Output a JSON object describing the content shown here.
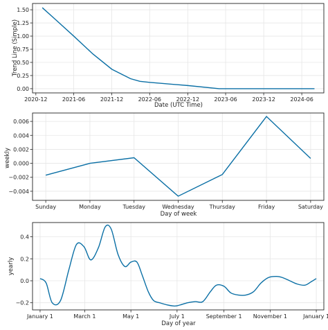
{
  "chart_data": [
    {
      "type": "line",
      "xlabel": "Date (UTC Time)",
      "ylabel": "Trend Line (Simple)",
      "x_axis_type": "date",
      "xlim": [
        "2020-11-15",
        "2024-09-15"
      ],
      "ylim": [
        -0.08,
        1.62
      ],
      "grid": true,
      "x_tick_values": [
        "2020-12-01",
        "2021-06-01",
        "2021-12-01",
        "2022-06-01",
        "2022-12-01",
        "2023-06-01",
        "2023-12-01",
        "2024-06-01"
      ],
      "x_tick_labels": [
        "2020-12",
        "2021-06",
        "2021-12",
        "2022-06",
        "2022-12",
        "2023-06",
        "2023-12",
        "2024-06"
      ],
      "y_tick_values": [
        0,
        0.25,
        0.5,
        0.75,
        1.0,
        1.25,
        1.5
      ],
      "y_tick_labels": [
        "0.00",
        "0.25",
        "0.50",
        "0.75",
        "1.00",
        "1.25",
        "1.50"
      ],
      "series": [
        {
          "color": "#0a6fa5",
          "x": [
            "2021-01-01",
            "2021-03-01",
            "2021-06-01",
            "2021-09-01",
            "2021-12-01",
            "2022-03-01",
            "2022-04-15",
            "2022-06-01",
            "2022-12-01",
            "2023-05-01",
            "2023-12-01",
            "2024-06-01",
            "2024-08-01"
          ],
          "y": [
            1.54,
            1.33,
            1.0,
            0.66,
            0.37,
            0.19,
            0.14,
            0.12,
            0.06,
            0.0,
            0.0,
            0.0,
            0.0
          ]
        }
      ]
    },
    {
      "type": "line",
      "xlabel": "Day of week",
      "ylabel": "weekly",
      "categories": [
        "Sunday",
        "Monday",
        "Tuesday",
        "Wednesday",
        "Thursday",
        "Friday",
        "Saturday"
      ],
      "ylim": [
        -0.0053,
        0.0072
      ],
      "grid": true,
      "y_tick_values": [
        -0.004,
        -0.002,
        0.0,
        0.002,
        0.004,
        0.006
      ],
      "y_tick_labels": [
        "−0.004",
        "−0.002",
        "0.000",
        "0.002",
        "0.004",
        "0.006"
      ],
      "series": [
        {
          "color": "#0a6fa5",
          "values": [
            -0.0017,
            0.0,
            0.0008,
            -0.0047,
            -0.0016,
            0.0067,
            0.0007
          ]
        }
      ]
    },
    {
      "type": "line",
      "xlabel": "Day of year",
      "ylabel": "yearly",
      "xlim": [
        -10,
        375
      ],
      "ylim": [
        -0.265,
        0.53
      ],
      "grid": true,
      "x_tick_values": [
        0,
        59,
        120,
        181,
        243,
        304,
        365
      ],
      "x_tick_labels": [
        "January 1",
        "March 1",
        "May 1",
        "July 1",
        "September 1",
        "November 1",
        "January 1"
      ],
      "y_tick_values": [
        -0.2,
        0.0,
        0.2,
        0.4
      ],
      "y_tick_labels": [
        "−0.2",
        "0.0",
        "0.2",
        "0.4"
      ],
      "series": [
        {
          "color": "#0a6fa5",
          "x": [
            0,
            8,
            16,
            27,
            38,
            48,
            58,
            67,
            77,
            86,
            94,
            103,
            112,
            120,
            128,
            135,
            143,
            150,
            158,
            168,
            178,
            185,
            195,
            205,
            215,
            225,
            233,
            243,
            252,
            262,
            272,
            282,
            292,
            302,
            312,
            320,
            330,
            340,
            350,
            358,
            365
          ],
          "y": [
            0.02,
            -0.02,
            -0.2,
            -0.18,
            0.1,
            0.33,
            0.31,
            0.19,
            0.3,
            0.49,
            0.47,
            0.24,
            0.13,
            0.17,
            0.17,
            0.05,
            -0.1,
            -0.18,
            -0.2,
            -0.22,
            -0.23,
            -0.22,
            -0.2,
            -0.19,
            -0.19,
            -0.1,
            -0.04,
            -0.05,
            -0.11,
            -0.13,
            -0.13,
            -0.1,
            -0.02,
            0.03,
            0.04,
            0.03,
            0.0,
            -0.03,
            -0.04,
            -0.01,
            0.02
          ]
        }
      ]
    }
  ]
}
